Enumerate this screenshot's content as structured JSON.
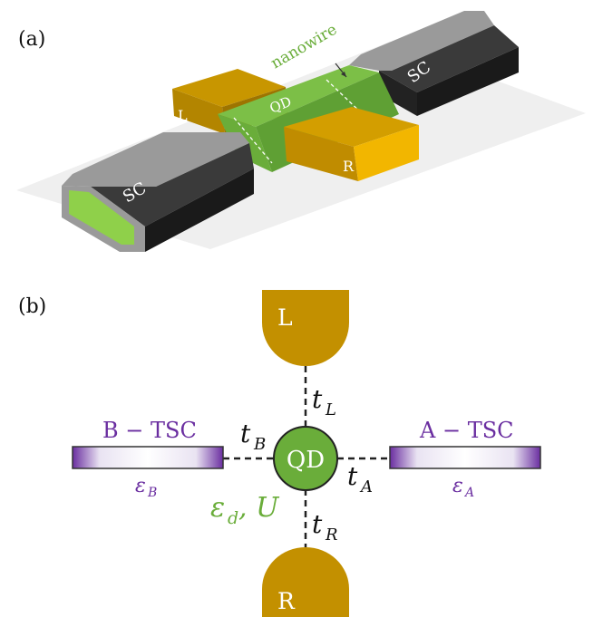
{
  "panel_a": {
    "label": "(a)",
    "nanowire_label": "nanowire",
    "qd_label": "QD",
    "lead_left_label": "L",
    "lead_right_label": "R",
    "sc_left_label": "SC",
    "sc_right_label": "SC"
  },
  "panel_b": {
    "label": "(b)",
    "lead_top_label": "L",
    "lead_bottom_label": "R",
    "qd_label": "QD",
    "t_left_lead": "t",
    "t_left_lead_sub": "L",
    "t_right_lead": "t",
    "t_right_lead_sub": "R",
    "t_b": "t",
    "t_b_sub": "B",
    "t_a": "t",
    "t_a_sub": "A",
    "tsc_b_title": "B − TSC",
    "tsc_a_title": "A − TSC",
    "eps_b": "ε",
    "eps_b_sub": "B",
    "eps_a": "ε",
    "eps_a_sub": "A",
    "qd_params": "ε",
    "qd_params_sub": "d",
    "qd_params_rest": ", U"
  },
  "colors": {
    "gold": "#c39000",
    "gold_light": "#f2b600",
    "green": "#6aad3a",
    "green_light": "#9bd84e",
    "sc_dark": "#2b2b2b",
    "sc_gray": "#8c8c8c",
    "purple": "#6a2ea0"
  }
}
